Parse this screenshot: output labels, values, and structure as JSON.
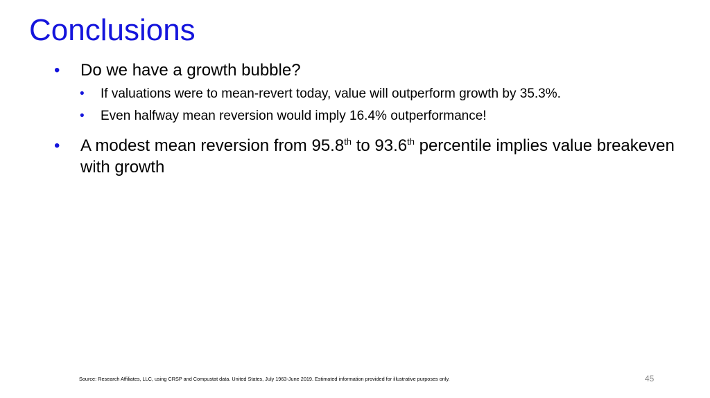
{
  "header": {
    "title": "Conclusions"
  },
  "bullets": [
    {
      "text": "Do we have a growth bubble?",
      "sub_bullets": [
        "If valuations were to mean-revert today, value will outperform growth by 35.3%.",
        "Even halfway mean reversion would imply 16.4% outperformance!"
      ]
    },
    {
      "parts": [
        {
          "text": "A modest mean reversion from 95.8"
        },
        {
          "sup": "th"
        },
        {
          "text": " to 93.6"
        },
        {
          "sup": "th"
        },
        {
          "text": " percentile implies value breakeven with growth"
        }
      ]
    }
  ],
  "footer": {
    "source": "Source: Research Affiliates, LLC, using CRSP and Compustat data. United States, July 1963-June 2019. Estimated information provided for illustrative purposes only.",
    "page_number": "45"
  }
}
